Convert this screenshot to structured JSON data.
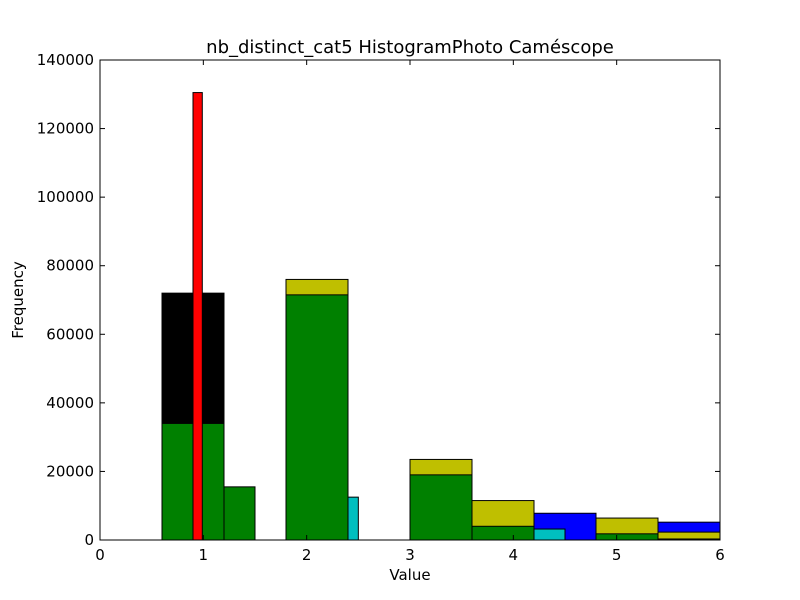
{
  "chart_data": {
    "type": "bar",
    "title": "nb_distinct_cat5 HistogramPhoto Caméscope",
    "xlabel": "Value",
    "ylabel": "Frequency",
    "xlim": [
      0,
      6
    ],
    "ylim": [
      0,
      140000
    ],
    "xticks": [
      "0",
      "1",
      "2",
      "3",
      "4",
      "5",
      "6"
    ],
    "yticks": [
      "0",
      "20000",
      "40000",
      "60000",
      "80000",
      "100000",
      "120000",
      "140000"
    ],
    "grid": false,
    "series": [
      {
        "color": "#0000ff",
        "bins": [
          {
            "x0": 0.0,
            "x1": 0.6,
            "value": 0
          },
          {
            "x0": 0.6,
            "x1": 1.2,
            "value": 34000
          },
          {
            "x0": 1.2,
            "x1": 1.8,
            "value": 0
          },
          {
            "x0": 1.8,
            "x1": 2.4,
            "value": 58000
          },
          {
            "x0": 2.4,
            "x1": 3.0,
            "value": 0
          },
          {
            "x0": 3.0,
            "x1": 3.6,
            "value": 17000
          },
          {
            "x0": 3.6,
            "x1": 4.2,
            "value": 0
          },
          {
            "x0": 4.2,
            "x1": 4.8,
            "value": 7800
          },
          {
            "x0": 4.8,
            "x1": 5.4,
            "value": 0
          },
          {
            "x0": 5.4,
            "x1": 6.0,
            "value": 5200
          }
        ]
      },
      {
        "color": "#000000",
        "bins": [
          {
            "x0": 0.6,
            "x1": 1.2,
            "value": 72000
          },
          {
            "x0": 1.8,
            "x1": 2.4,
            "value": 52000
          }
        ]
      },
      {
        "color": "#00bfbf",
        "bins": [
          {
            "x0": 0.9,
            "x1": 1.5,
            "value": 12000
          },
          {
            "x0": 1.8,
            "x1": 2.5,
            "value": 12500
          },
          {
            "x0": 4.2,
            "x1": 4.5,
            "value": 3200
          }
        ]
      },
      {
        "color": "#bfbf00",
        "bins": [
          {
            "x0": 1.8,
            "x1": 2.4,
            "value": 76000
          },
          {
            "x0": 3.0,
            "x1": 3.6,
            "value": 23500
          },
          {
            "x0": 3.6,
            "x1": 4.2,
            "value": 11500
          },
          {
            "x0": 4.8,
            "x1": 5.4,
            "value": 6400
          },
          {
            "x0": 5.4,
            "x1": 6.0,
            "value": 2300
          }
        ]
      },
      {
        "color": "#008000",
        "bins": [
          {
            "x0": 0.6,
            "x1": 1.2,
            "value": 34000
          },
          {
            "x0": 1.2,
            "x1": 1.5,
            "value": 15500
          },
          {
            "x0": 1.8,
            "x1": 2.4,
            "value": 71500
          },
          {
            "x0": 3.0,
            "x1": 3.6,
            "value": 19000
          },
          {
            "x0": 3.6,
            "x1": 4.2,
            "value": 4000
          },
          {
            "x0": 4.8,
            "x1": 5.4,
            "value": 1800
          },
          {
            "x0": 5.4,
            "x1": 6.0,
            "value": 300
          }
        ]
      },
      {
        "color": "#ff0000",
        "bins": [
          {
            "x0": 0.9,
            "x1": 0.99,
            "value": 130500
          }
        ]
      }
    ]
  }
}
